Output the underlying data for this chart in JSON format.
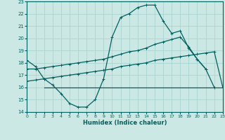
{
  "xlabel": "Humidex (Indice chaleur)",
  "bg_color": "#cce8e4",
  "grid_color": "#aad4d0",
  "line_color": "#006060",
  "xlim": [
    0,
    23
  ],
  "ylim": [
    14,
    23
  ],
  "xticks": [
    0,
    1,
    2,
    3,
    4,
    5,
    6,
    7,
    8,
    9,
    10,
    11,
    12,
    13,
    14,
    15,
    16,
    17,
    18,
    19,
    20,
    21,
    22,
    23
  ],
  "yticks": [
    14,
    15,
    16,
    17,
    18,
    19,
    20,
    21,
    22,
    23
  ],
  "curve1_x": [
    0,
    1,
    2,
    3,
    4,
    5,
    6,
    7,
    8,
    9,
    10,
    11,
    12,
    13,
    14,
    15,
    16,
    17,
    18,
    19,
    20,
    21,
    22
  ],
  "curve1_y": [
    18.2,
    17.7,
    16.7,
    16.2,
    15.5,
    14.7,
    14.4,
    14.4,
    15.0,
    16.7,
    20.1,
    21.7,
    22.0,
    22.5,
    22.7,
    22.7,
    21.4,
    20.4,
    20.6,
    19.2,
    18.3,
    17.5,
    16.0
  ],
  "curve2_x": [
    0,
    1,
    2,
    3,
    4,
    5,
    6,
    7,
    8,
    9,
    10,
    11,
    12,
    13,
    14,
    15,
    16,
    17,
    18,
    19,
    20,
    21
  ],
  "curve2_y": [
    17.5,
    17.5,
    17.6,
    17.7,
    17.8,
    17.9,
    18.0,
    18.1,
    18.2,
    18.3,
    18.5,
    18.7,
    18.9,
    19.0,
    19.2,
    19.5,
    19.7,
    19.9,
    20.1,
    19.3,
    18.3,
    17.5
  ],
  "curve3_x": [
    0,
    1,
    2,
    3,
    4,
    5,
    6,
    7,
    8,
    9,
    10,
    11,
    12,
    13,
    14,
    15,
    16,
    17,
    18,
    19,
    20,
    21,
    22,
    23
  ],
  "curve3_y": [
    16.5,
    16.6,
    16.7,
    16.8,
    16.9,
    17.0,
    17.1,
    17.2,
    17.3,
    17.4,
    17.5,
    17.7,
    17.8,
    17.9,
    18.0,
    18.2,
    18.3,
    18.4,
    18.5,
    18.6,
    18.7,
    18.8,
    18.9,
    16.0
  ],
  "curve4_x": [
    2,
    3,
    4,
    5,
    6,
    7,
    8,
    9,
    10,
    11,
    12,
    13,
    14,
    15,
    16,
    17,
    18,
    19,
    20,
    21,
    22,
    23
  ],
  "curve4_y": [
    16.0,
    16.0,
    16.0,
    16.0,
    16.0,
    16.0,
    16.0,
    16.0,
    16.0,
    16.0,
    16.0,
    16.0,
    16.0,
    16.0,
    16.0,
    16.0,
    16.0,
    16.0,
    16.0,
    16.0,
    16.0,
    16.0
  ]
}
